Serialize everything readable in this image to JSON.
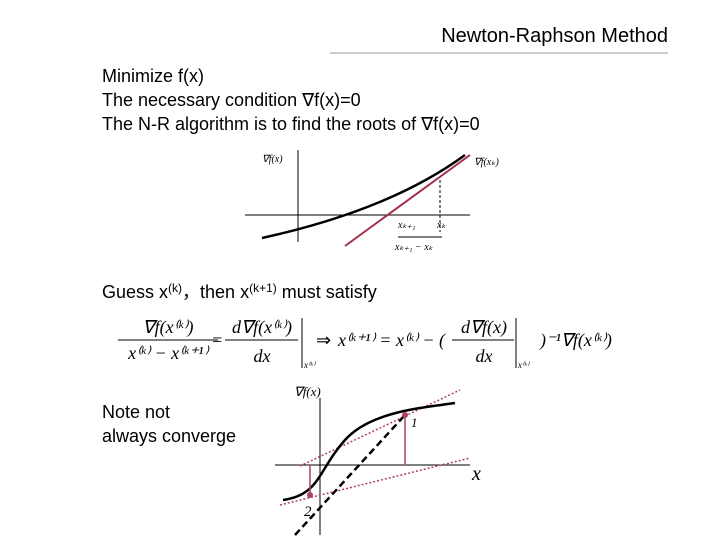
{
  "header": {
    "title": "Newton-Raphson Method"
  },
  "bullets": [
    "Minimize f(x)",
    "The necessary condition ∇f(x)=0",
    "The N-R algorithm is to find the roots of ∇f(x)=0"
  ],
  "diagram1": {
    "y_label": "∇f(x)",
    "tangent_label": "∇f(xₖ)",
    "x_next": "xₖ₊₁",
    "x_k": "xₖ",
    "step": "xₖ₊₁ − xₖ"
  },
  "guess": {
    "prefix": "Guess x",
    "sup1": "(k)",
    "mid": "，then x",
    "sup2": "(k+1)",
    "suffix": " must satisfy"
  },
  "formula": {
    "lhs_num": "∇f(x⁽ᵏ⁾)",
    "lhs_den": "x⁽ᵏ⁾ − x⁽ᵏ⁺¹⁾",
    "eq": "=",
    "d_num": "d∇f(x⁽ᵏ⁾)",
    "d_den": "dx",
    "eval1": "x⁽ᵏ⁾",
    "implies": "⇒",
    "update": "x⁽ᵏ⁺¹⁾ = x⁽ᵏ⁾ − (",
    "d2_num": "d∇f(x)",
    "d2_den": "dx",
    "eval2": "x⁽ᵏ⁾",
    "tail": ")⁻¹∇f(x⁽ᵏ⁾)"
  },
  "note": [
    "Note not",
    "always converge"
  ],
  "diagram2": {
    "y_label": "∇f(x)",
    "x_label": "x",
    "point1": "1",
    "point2": "2"
  }
}
